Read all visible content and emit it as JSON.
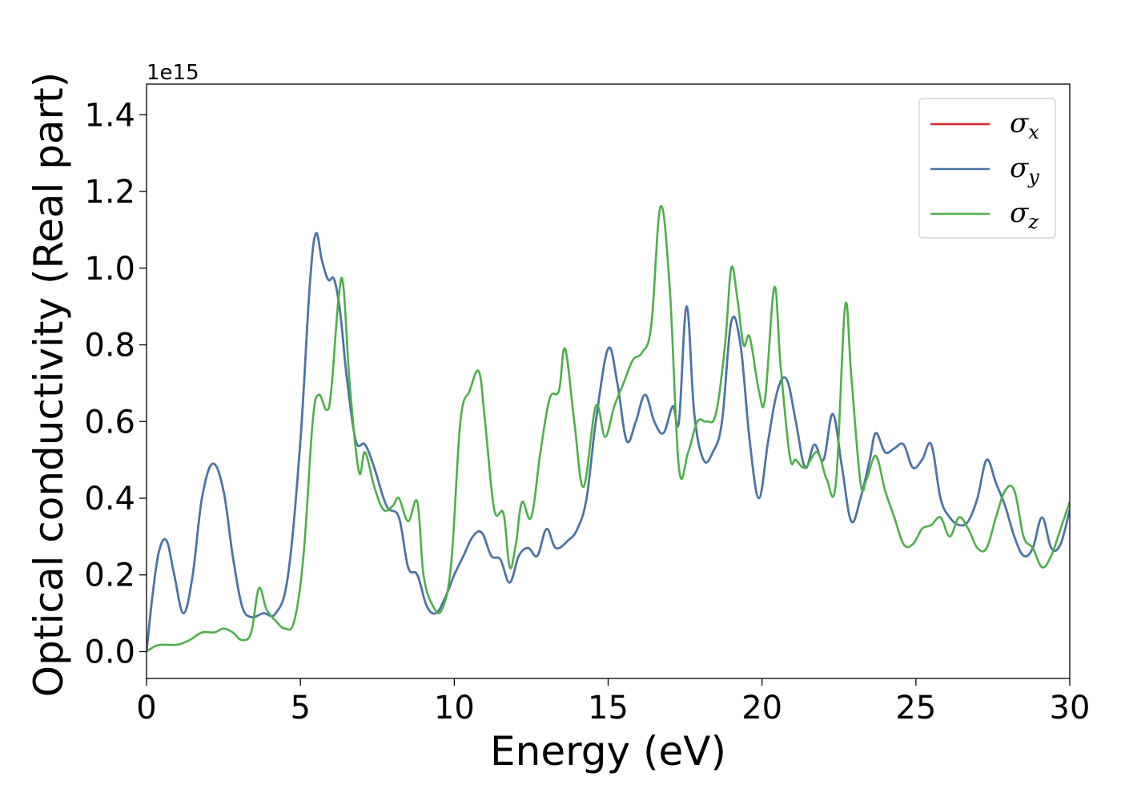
{
  "chart_data": {
    "type": "line",
    "title": "",
    "xlabel": "Energy (eV)",
    "ylabel": "Optical conductivity (Real part)",
    "y_multiplier_label": "1e15",
    "xlim": [
      0,
      30
    ],
    "ylim": [
      -0.07,
      1.48
    ],
    "xticks": [
      0,
      5,
      10,
      15,
      20,
      25,
      30
    ],
    "yticks": [
      0.0,
      0.2,
      0.4,
      0.6,
      0.8,
      1.0,
      1.2,
      1.4
    ],
    "xtick_labels": [
      "0",
      "5",
      "10",
      "15",
      "20",
      "25",
      "30"
    ],
    "ytick_labels": [
      "0.0",
      "0.2",
      "0.4",
      "0.6",
      "0.8",
      "1.0",
      "1.2",
      "1.4"
    ],
    "grid": false,
    "legend_position": "top-right",
    "series": [
      {
        "name": "σx",
        "symbol": "σ",
        "subscript": "x",
        "color": "#d62728",
        "x": [
          0,
          0.2,
          0.4,
          0.65,
          0.9,
          1.2,
          1.5,
          1.8,
          2.15,
          2.5,
          2.8,
          3.1,
          3.4,
          3.8,
          4.2,
          4.6,
          5.0,
          5.3,
          5.5,
          5.7,
          5.9,
          6.1,
          6.3,
          6.5,
          6.8,
          7.1,
          7.4,
          7.8,
          8.2,
          8.5,
          8.8,
          9.1,
          9.4,
          9.7,
          10.0,
          10.3,
          10.6,
          10.9,
          11.2,
          11.5,
          11.8,
          12.1,
          12.4,
          12.7,
          13.0,
          13.3,
          13.7,
          14.0,
          14.3,
          14.6,
          15.0,
          15.3,
          15.6,
          15.9,
          16.2,
          16.5,
          16.8,
          17.1,
          17.3,
          17.55,
          17.8,
          18.1,
          18.4,
          18.7,
          19.0,
          19.3,
          19.6,
          19.9,
          20.2,
          20.5,
          20.8,
          21.1,
          21.4,
          21.7,
          22.0,
          22.3,
          22.6,
          22.9,
          23.2,
          23.5,
          23.7,
          24.0,
          24.3,
          24.6,
          24.9,
          25.2,
          25.5,
          25.8,
          26.1,
          26.4,
          26.7,
          27.0,
          27.3,
          27.6,
          27.9,
          28.2,
          28.5,
          28.8,
          29.1,
          29.4,
          29.7,
          30.0
        ],
        "y": [
          0.0,
          0.15,
          0.26,
          0.29,
          0.2,
          0.1,
          0.2,
          0.4,
          0.49,
          0.42,
          0.25,
          0.12,
          0.09,
          0.1,
          0.1,
          0.2,
          0.55,
          0.95,
          1.09,
          1.02,
          0.97,
          0.97,
          0.88,
          0.72,
          0.55,
          0.54,
          0.48,
          0.38,
          0.35,
          0.22,
          0.2,
          0.12,
          0.1,
          0.14,
          0.2,
          0.25,
          0.3,
          0.31,
          0.25,
          0.24,
          0.18,
          0.25,
          0.27,
          0.25,
          0.32,
          0.27,
          0.29,
          0.32,
          0.4,
          0.6,
          0.79,
          0.7,
          0.55,
          0.6,
          0.67,
          0.6,
          0.57,
          0.64,
          0.6,
          0.9,
          0.62,
          0.5,
          0.52,
          0.6,
          0.86,
          0.8,
          0.55,
          0.4,
          0.55,
          0.68,
          0.71,
          0.6,
          0.48,
          0.54,
          0.5,
          0.62,
          0.48,
          0.34,
          0.4,
          0.5,
          0.57,
          0.52,
          0.53,
          0.54,
          0.48,
          0.5,
          0.54,
          0.4,
          0.35,
          0.33,
          0.34,
          0.4,
          0.5,
          0.44,
          0.38,
          0.3,
          0.25,
          0.27,
          0.35,
          0.27,
          0.28,
          0.37
        ]
      },
      {
        "name": "σy",
        "symbol": "σ",
        "subscript": "y",
        "color": "#4477aa",
        "x": [
          0,
          0.2,
          0.4,
          0.65,
          0.9,
          1.2,
          1.5,
          1.8,
          2.15,
          2.5,
          2.8,
          3.1,
          3.4,
          3.8,
          4.2,
          4.6,
          5.0,
          5.3,
          5.5,
          5.7,
          5.9,
          6.1,
          6.3,
          6.5,
          6.8,
          7.1,
          7.4,
          7.8,
          8.2,
          8.5,
          8.8,
          9.1,
          9.4,
          9.7,
          10.0,
          10.3,
          10.6,
          10.9,
          11.2,
          11.5,
          11.8,
          12.1,
          12.4,
          12.7,
          13.0,
          13.3,
          13.7,
          14.0,
          14.3,
          14.6,
          15.0,
          15.3,
          15.6,
          15.9,
          16.2,
          16.5,
          16.8,
          17.1,
          17.3,
          17.55,
          17.8,
          18.1,
          18.4,
          18.7,
          19.0,
          19.3,
          19.6,
          19.9,
          20.2,
          20.5,
          20.8,
          21.1,
          21.4,
          21.7,
          22.0,
          22.3,
          22.6,
          22.9,
          23.2,
          23.5,
          23.7,
          24.0,
          24.3,
          24.6,
          24.9,
          25.2,
          25.5,
          25.8,
          26.1,
          26.4,
          26.7,
          27.0,
          27.3,
          27.6,
          27.9,
          28.2,
          28.5,
          28.8,
          29.1,
          29.4,
          29.7,
          30.0
        ],
        "y": [
          0.0,
          0.15,
          0.26,
          0.29,
          0.2,
          0.1,
          0.2,
          0.4,
          0.49,
          0.42,
          0.25,
          0.12,
          0.09,
          0.1,
          0.1,
          0.2,
          0.55,
          0.95,
          1.09,
          1.02,
          0.97,
          0.97,
          0.88,
          0.72,
          0.55,
          0.54,
          0.48,
          0.38,
          0.35,
          0.22,
          0.2,
          0.12,
          0.1,
          0.14,
          0.2,
          0.25,
          0.3,
          0.31,
          0.25,
          0.24,
          0.18,
          0.25,
          0.27,
          0.25,
          0.32,
          0.27,
          0.29,
          0.32,
          0.4,
          0.6,
          0.79,
          0.7,
          0.55,
          0.6,
          0.67,
          0.6,
          0.57,
          0.64,
          0.6,
          0.9,
          0.62,
          0.5,
          0.52,
          0.6,
          0.86,
          0.8,
          0.55,
          0.4,
          0.55,
          0.68,
          0.71,
          0.6,
          0.48,
          0.54,
          0.5,
          0.62,
          0.48,
          0.34,
          0.4,
          0.5,
          0.57,
          0.52,
          0.53,
          0.54,
          0.48,
          0.5,
          0.54,
          0.4,
          0.35,
          0.33,
          0.34,
          0.4,
          0.5,
          0.44,
          0.38,
          0.3,
          0.25,
          0.27,
          0.35,
          0.27,
          0.28,
          0.37
        ]
      },
      {
        "name": "σz",
        "symbol": "σ",
        "subscript": "z",
        "color": "#4daf4a",
        "x": [
          0,
          0.3,
          0.6,
          1.0,
          1.4,
          1.8,
          2.2,
          2.5,
          2.8,
          3.1,
          3.4,
          3.65,
          3.9,
          4.2,
          4.5,
          4.8,
          5.1,
          5.4,
          5.6,
          5.85,
          6.0,
          6.25,
          6.4,
          6.6,
          6.9,
          7.1,
          7.4,
          7.7,
          8.0,
          8.2,
          8.5,
          8.8,
          9.0,
          9.3,
          9.6,
          9.9,
          10.2,
          10.5,
          10.8,
          11.0,
          11.3,
          11.6,
          11.8,
          12.0,
          12.2,
          12.5,
          12.8,
          13.1,
          13.4,
          13.6,
          13.9,
          14.2,
          14.6,
          14.9,
          15.2,
          15.5,
          15.8,
          16.1,
          16.4,
          16.7,
          17.0,
          17.3,
          17.6,
          17.9,
          18.2,
          18.5,
          18.8,
          19.0,
          19.2,
          19.4,
          19.6,
          19.9,
          20.1,
          20.4,
          20.6,
          20.9,
          21.1,
          21.4,
          21.8,
          22.1,
          22.4,
          22.7,
          22.9,
          23.2,
          23.4,
          23.7,
          24.0,
          24.3,
          24.6,
          24.9,
          25.2,
          25.5,
          25.8,
          26.1,
          26.4,
          26.7,
          27.0,
          27.3,
          27.6,
          27.9,
          28.2,
          28.5,
          28.8,
          29.1,
          29.4,
          29.7,
          30.0
        ],
        "y": [
          0.0,
          0.015,
          0.018,
          0.018,
          0.03,
          0.05,
          0.05,
          0.06,
          0.05,
          0.03,
          0.05,
          0.165,
          0.11,
          0.08,
          0.06,
          0.08,
          0.25,
          0.6,
          0.67,
          0.63,
          0.68,
          0.93,
          0.95,
          0.7,
          0.47,
          0.52,
          0.43,
          0.37,
          0.38,
          0.4,
          0.34,
          0.39,
          0.2,
          0.12,
          0.11,
          0.23,
          0.6,
          0.68,
          0.73,
          0.6,
          0.37,
          0.36,
          0.22,
          0.28,
          0.39,
          0.35,
          0.52,
          0.66,
          0.68,
          0.79,
          0.6,
          0.43,
          0.64,
          0.56,
          0.64,
          0.7,
          0.76,
          0.78,
          0.85,
          1.16,
          0.95,
          0.48,
          0.52,
          0.6,
          0.6,
          0.62,
          0.8,
          1.0,
          0.92,
          0.8,
          0.82,
          0.68,
          0.66,
          0.95,
          0.75,
          0.51,
          0.5,
          0.48,
          0.52,
          0.45,
          0.44,
          0.9,
          0.72,
          0.44,
          0.45,
          0.51,
          0.42,
          0.35,
          0.28,
          0.28,
          0.32,
          0.33,
          0.35,
          0.3,
          0.35,
          0.32,
          0.27,
          0.27,
          0.35,
          0.42,
          0.42,
          0.3,
          0.27,
          0.22,
          0.25,
          0.32,
          0.39
        ]
      }
    ]
  }
}
